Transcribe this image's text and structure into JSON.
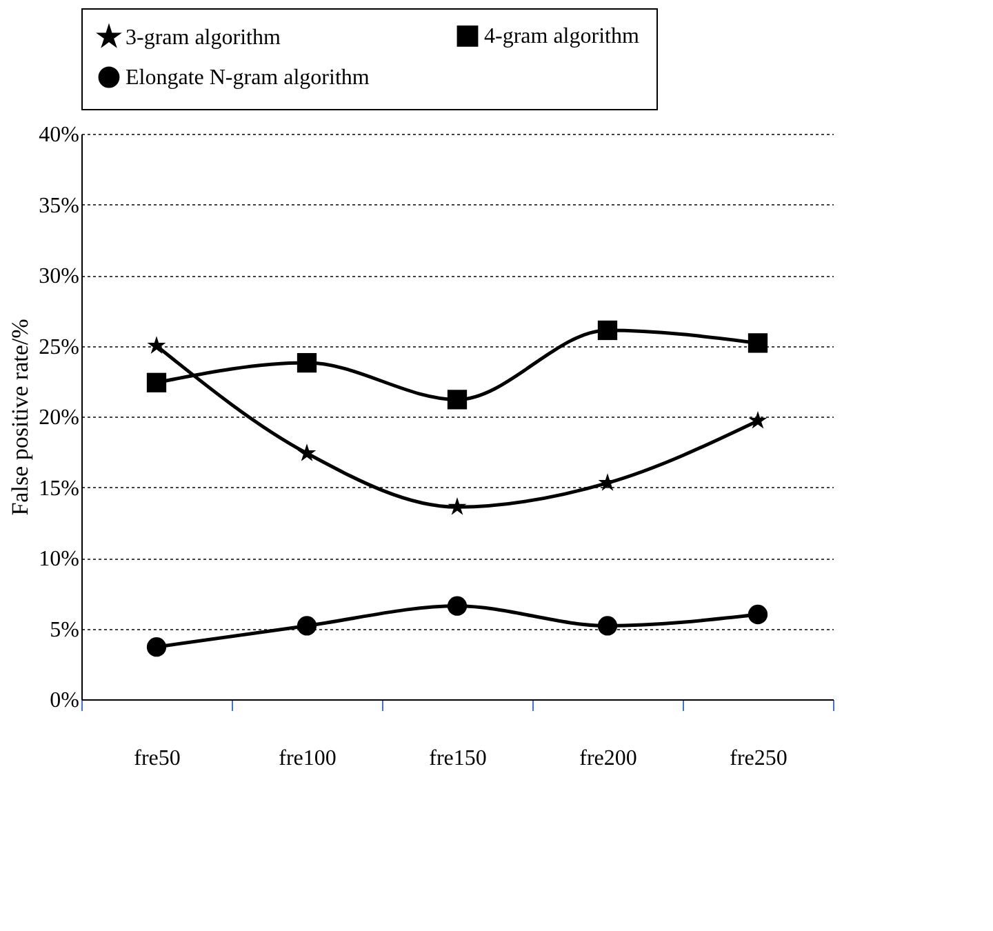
{
  "chart_data": {
    "type": "line",
    "ylabel": "False positive rate/%",
    "categories": [
      "fre50",
      "fre100",
      "fre150",
      "fre200",
      "fre250"
    ],
    "series": [
      {
        "name": "3-gram algorithm",
        "color": "#000000",
        "marker": "star",
        "values": [
          25.0,
          17.4,
          13.6,
          15.3,
          19.7
        ]
      },
      {
        "name": "4-gram algorithm",
        "color": "#000000",
        "marker": "square",
        "values": [
          22.4,
          23.8,
          21.2,
          26.1,
          25.2
        ]
      },
      {
        "name": "Elongate N-gram algorithm",
        "color": "#000000",
        "marker": "circle",
        "values": [
          3.7,
          5.2,
          6.6,
          5.2,
          6.0
        ]
      }
    ],
    "ylim": [
      0,
      40
    ],
    "yticks": [
      {
        "value": 0,
        "label": "0%"
      },
      {
        "value": 5,
        "label": "5%"
      },
      {
        "value": 10,
        "label": "10%"
      },
      {
        "value": 15,
        "label": "15%"
      },
      {
        "value": 20,
        "label": "20%"
      },
      {
        "value": 25,
        "label": "25%"
      },
      {
        "value": 30,
        "label": "30%"
      },
      {
        "value": 35,
        "label": "35%"
      },
      {
        "value": 40,
        "label": "40%"
      }
    ],
    "grid": "y",
    "legend": "top",
    "line_style": "solid"
  }
}
